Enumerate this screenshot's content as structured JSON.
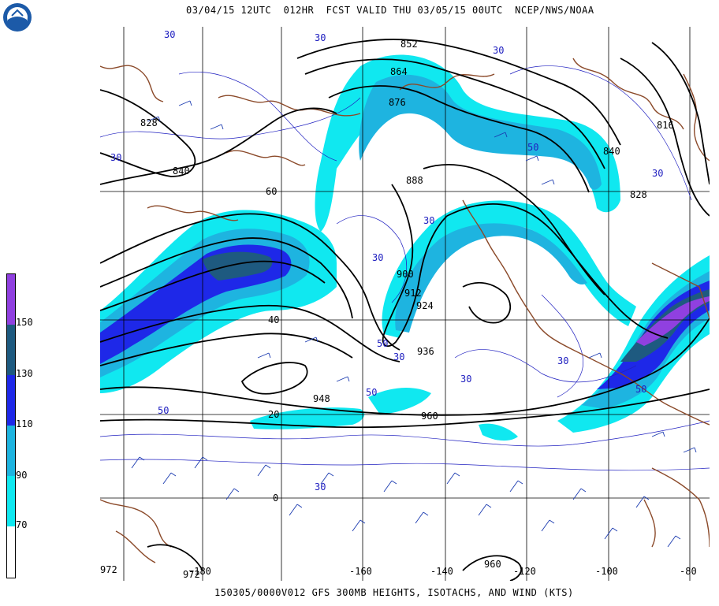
{
  "header": {
    "title": "03/04/15 12UTC  012HR  FCST VALID THU 03/05/15 00UTC  NCEP/NWS/NOAA"
  },
  "footer": {
    "caption": "150305/0000V012 GFS 300MB HEIGHTS, ISOTACHS, AND WIND (KTS)"
  },
  "logo": {
    "name": "NOAA",
    "icon": "noaa-logo-icon"
  },
  "colorbar": {
    "levels": [
      {
        "label": "150",
        "color": "#9040e0"
      },
      {
        "label": "130",
        "color": "#1e5a80"
      },
      {
        "label": "110",
        "color": "#1e28e8"
      },
      {
        "label": "90",
        "color": "#1eb4e0"
      },
      {
        "label": "70",
        "color": "#10e8f0"
      },
      {
        "label": "",
        "color": "#ffffff"
      }
    ]
  },
  "map": {
    "lat_labels": [
      "60",
      "40",
      "20",
      "0"
    ],
    "lon_labels": [
      "-180",
      "-160",
      "-140",
      "-120",
      "-100",
      "-80"
    ],
    "height_contour_labels": [
      "852",
      "864",
      "876",
      "828",
      "840",
      "888",
      "900",
      "912",
      "924",
      "936",
      "948",
      "960",
      "840",
      "816",
      "828",
      "960",
      "972",
      "972"
    ],
    "isotach_labels": [
      "30",
      "30",
      "30",
      "30",
      "30",
      "30",
      "30",
      "30",
      "50",
      "50",
      "50",
      "50",
      "50",
      "30",
      "30",
      "30"
    ]
  }
}
